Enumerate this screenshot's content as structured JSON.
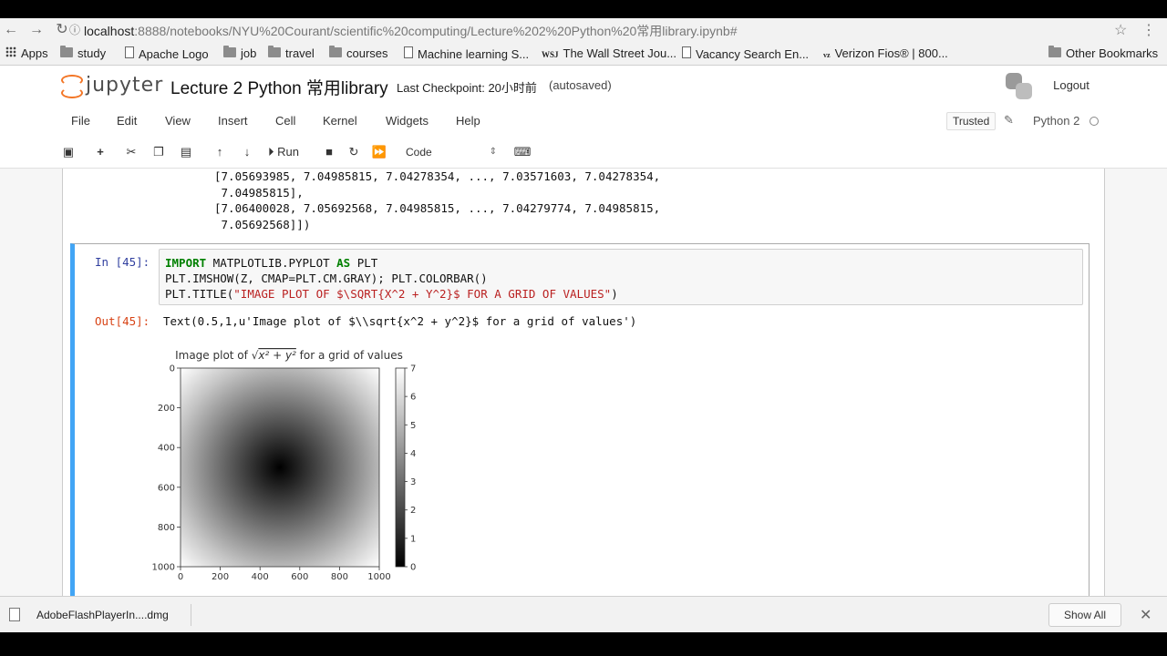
{
  "browser": {
    "url_host": "localhost",
    "url_rest": ":8888/notebooks/NYU%20Courant/scientific%20computing/Lecture%202%20Python%20常用library.ipynb#",
    "bookmarks": [
      "Apps",
      "study",
      "Apache Logo",
      "job",
      "travel",
      "courses",
      "Machine learning S...",
      "The Wall Street Jou...",
      "Vacancy Search En...",
      "Verizon Fios® | 800...",
      "Other Bookmarks"
    ],
    "bookmark_icons": [
      "apps-grid-icon",
      "folder-icon",
      "page-icon",
      "folder-icon",
      "folder-icon",
      "folder-icon",
      "page-icon",
      "wsj-icon",
      "page-icon",
      "verizon-icon",
      "folder-icon"
    ]
  },
  "jupyter": {
    "logo_text": "jupyter",
    "title": "Lecture 2 Python 常用library",
    "checkpoint": "Last Checkpoint: 20小时前",
    "autosaved": "(autosaved)",
    "logout": "Logout",
    "menu": [
      "File",
      "Edit",
      "View",
      "Insert",
      "Cell",
      "Kernel",
      "Widgets",
      "Help"
    ],
    "trusted": "Trusted",
    "kernel": "Python 2",
    "run_label": "Run",
    "cell_type": "Code"
  },
  "notebook": {
    "prev_output": [
      "[7.05693985, 7.04985815, 7.04278354, ..., 7.03571603, 7.04278354,",
      " 7.04985815],",
      "[7.06400028, 7.05692568, 7.04985815, ..., 7.04279774, 7.04985815,",
      " 7.05692568]])"
    ],
    "in_prompt": "In [45]:",
    "code_line1_kw": "IMPORT",
    "code_line1_mid": " MATPLOTLIB.PYPLOT ",
    "code_line1_kw2": "AS",
    "code_line1_end": " PLT",
    "code_line2": "PLT.IMSHOW(Z, CMAP=PLT.CM.GRAY); PLT.COLORBAR()",
    "code_line3_a": "PLT.TITLE(",
    "code_line3_str": "\"IMAGE PLOT OF $\\SQRT{X^2 + Y^2}$ FOR A GRID OF VALUES\"",
    "code_line3_b": ")",
    "out_prompt": "Out[45]:",
    "out_text": "Text(0.5,1,u'Image plot of $\\\\sqrt{x^2 + y^2}$ for a grid of values')"
  },
  "chart_data": {
    "type": "heatmap",
    "title": "Image plot of √(x² + y²) for a grid of values",
    "title_prefix": "Image plot of ",
    "title_sqrt": "x² + y²",
    "title_suffix": " for a grid of values",
    "x_ticks": [
      "0",
      "200",
      "400",
      "600",
      "800",
      "1000"
    ],
    "y_ticks": [
      "0",
      "200",
      "400",
      "600",
      "800",
      "1000"
    ],
    "xlim": [
      0,
      1000
    ],
    "ylim": [
      1000,
      0
    ],
    "colorbar_ticks": [
      "0",
      "1",
      "2",
      "3",
      "4",
      "5",
      "6",
      "7"
    ],
    "colorbar_range": [
      0,
      7
    ],
    "colormap": "gray",
    "center": [
      500,
      500
    ],
    "max_value": 7.07
  },
  "downloads": {
    "file": "AdobeFlashPlayerIn....dmg",
    "show_all": "Show All"
  },
  "colors": {
    "jupyter_orange": "#f37626",
    "cell_border_selected": "#42a5f5",
    "in_prompt": "#303f9f",
    "out_prompt": "#d84315"
  }
}
